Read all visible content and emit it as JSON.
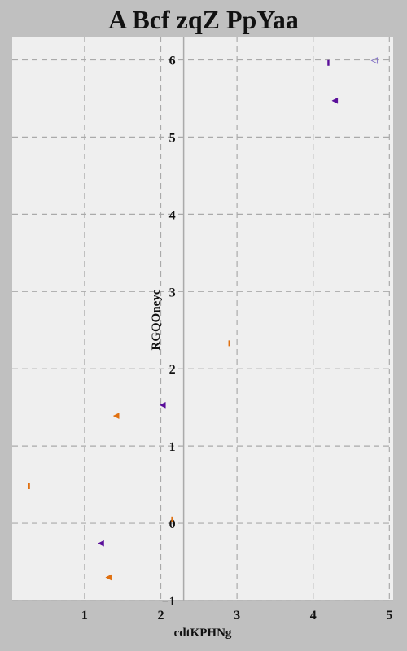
{
  "chart_data": {
    "type": "scatter",
    "title": "A Bcf zqZ PpYaa",
    "xlabel": "cdtKPHNg",
    "ylabel": "RGQOneyc",
    "xlim": [
      0.05,
      5.05
    ],
    "ylim": [
      -1,
      6.3
    ],
    "x_ticks": [
      1,
      2,
      3,
      4,
      5
    ],
    "y_ticks": [
      -1,
      0,
      1,
      2,
      3,
      4,
      5,
      6
    ],
    "grid": true,
    "colors": {
      "background": "#c0c0c0",
      "plot_background": "#efefef",
      "grid": "#aaaaaa",
      "orange": "#e07010",
      "purple": "#5a0f9a",
      "light_purple": "#8a7ac8"
    },
    "series": [
      {
        "marker": "bar",
        "color": "#e07010",
        "points": [
          {
            "x": 0.27,
            "y": 0.48
          },
          {
            "x": 2.15,
            "y": 0.05
          },
          {
            "x": 2.9,
            "y": 2.33
          }
        ]
      },
      {
        "marker": "triangle-left",
        "color": "#e07010",
        "points": [
          {
            "x": 1.32,
            "y": -0.7
          },
          {
            "x": 1.42,
            "y": 1.39
          }
        ]
      },
      {
        "marker": "triangle-left",
        "color": "#5a0f9a",
        "points": [
          {
            "x": 1.22,
            "y": -0.26
          },
          {
            "x": 2.03,
            "y": 1.53
          },
          {
            "x": 4.29,
            "y": 5.47
          }
        ]
      },
      {
        "marker": "bar",
        "color": "#5a0f9a",
        "points": [
          {
            "x": 4.2,
            "y": 5.96
          }
        ]
      },
      {
        "marker": "triangle-left-open",
        "color": "#8a7ac8",
        "points": [
          {
            "x": 4.81,
            "y": 5.99
          }
        ]
      }
    ]
  }
}
